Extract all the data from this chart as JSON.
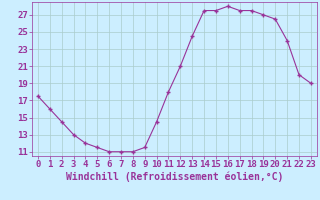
{
  "x": [
    0,
    1,
    2,
    3,
    4,
    5,
    6,
    7,
    8,
    9,
    10,
    11,
    12,
    13,
    14,
    15,
    16,
    17,
    18,
    19,
    20,
    21,
    22,
    23
  ],
  "y": [
    17.5,
    16.0,
    14.5,
    13.0,
    12.0,
    11.5,
    11.0,
    11.0,
    11.0,
    11.5,
    14.5,
    18.0,
    21.0,
    24.5,
    27.5,
    27.5,
    28.0,
    27.5,
    27.5,
    27.0,
    26.5,
    24.0,
    20.0,
    19.0
  ],
  "line_color": "#993399",
  "marker": "+",
  "xlabel": "Windchill (Refroidissement éolien,°C)",
  "xlabel_fontsize": 7,
  "bg_color": "#cceeff",
  "grid_color": "#aacccc",
  "tick_color": "#993399",
  "label_color": "#993399",
  "xlim": [
    -0.5,
    23.5
  ],
  "ylim": [
    10.5,
    28.5
  ],
  "yticks": [
    11,
    13,
    15,
    17,
    19,
    21,
    23,
    25,
    27
  ],
  "xticks": [
    0,
    1,
    2,
    3,
    4,
    5,
    6,
    7,
    8,
    9,
    10,
    11,
    12,
    13,
    14,
    15,
    16,
    17,
    18,
    19,
    20,
    21,
    22,
    23
  ],
  "tick_fontsize": 6.5
}
